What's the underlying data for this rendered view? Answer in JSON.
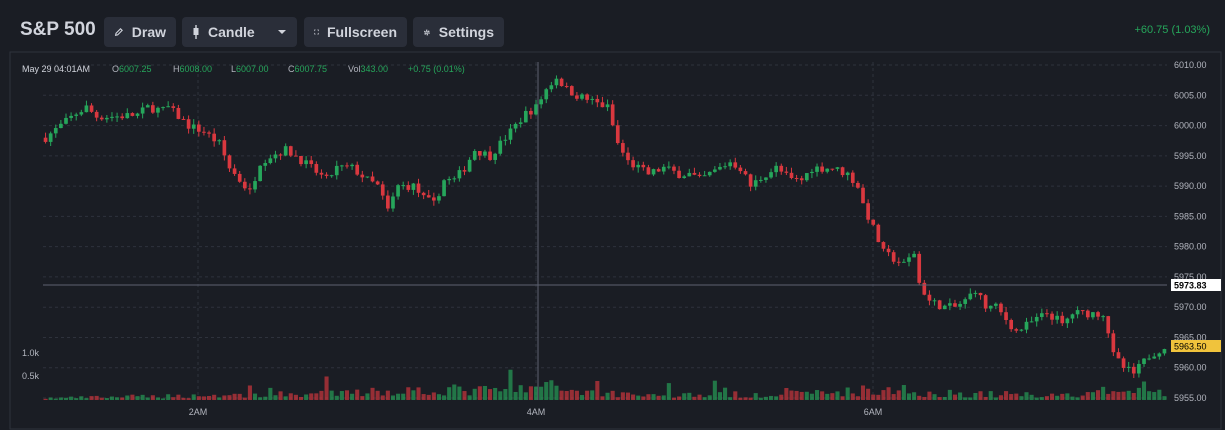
{
  "toolbar": {
    "title": "S&P 500",
    "draw_label": "Draw",
    "chart_type_label": "Candle",
    "fullscreen_label": "Fullscreen",
    "settings_label": "Settings",
    "change_text": "+60.75 (1.03%)"
  },
  "legend": {
    "time": "May 29 04:01AM",
    "o_label": "O",
    "o_value": "6007.25",
    "h_label": "H",
    "h_value": "6008.00",
    "l_label": "L",
    "l_value": "6007.00",
    "c_label": "C",
    "c_value": "6007.75",
    "vol_label": "Vol",
    "vol_value": "343.00",
    "change": "+0.75 (0.01%)"
  },
  "colors": {
    "up": "#26a65b",
    "down": "#d9383f",
    "background": "#1a1d24",
    "toolbar_button": "#2a2e39",
    "current_price_tag": "#f0c33c",
    "crosshair_tag": "#ffffff"
  },
  "chart_data": {
    "type": "candlestick",
    "x_tick_labels": [
      "2AM",
      "4AM",
      "6AM"
    ],
    "y_tick_labels": [
      "6010.00",
      "6005.00",
      "6000.00",
      "5995.00",
      "5990.00",
      "5985.00",
      "5980.00",
      "5975.00",
      "5970.00",
      "5965.00",
      "5960.00",
      "5955.00"
    ],
    "volume_tick_labels": [
      "1.0k",
      "0.5k"
    ],
    "ylim": [
      5955,
      6010.5
    ],
    "crosshair_price": "5973.83",
    "current_price": "5963.50",
    "grid": true,
    "price_path": [
      [
        0,
        5998
      ],
      [
        3,
        6000
      ],
      [
        6,
        6002
      ],
      [
        8,
        6003
      ],
      [
        10,
        6001.5
      ],
      [
        14,
        6001.5
      ],
      [
        18,
        6001.8
      ],
      [
        20,
        6003
      ],
      [
        23,
        6002.5
      ],
      [
        24,
        6003
      ],
      [
        26,
        6001.5
      ],
      [
        28,
        6000
      ],
      [
        31,
        5999
      ],
      [
        34,
        5997
      ],
      [
        36,
        5993
      ],
      [
        38,
        5991
      ],
      [
        40,
        5989
      ],
      [
        42,
        5994
      ],
      [
        44,
        5995
      ],
      [
        47,
        5996
      ],
      [
        49,
        5995
      ],
      [
        52,
        5993
      ],
      [
        55,
        5991
      ],
      [
        57,
        5993
      ],
      [
        60,
        5993
      ],
      [
        63,
        5991
      ],
      [
        65,
        5990
      ],
      [
        67,
        5986
      ],
      [
        69,
        5990
      ],
      [
        72,
        5990
      ],
      [
        74,
        5988
      ],
      [
        76,
        5987
      ],
      [
        78,
        5991
      ],
      [
        80,
        5991
      ],
      [
        82,
        5993
      ],
      [
        84,
        5996
      ],
      [
        87,
        5995
      ],
      [
        89,
        5997
      ],
      [
        92,
        6000
      ],
      [
        94,
        6002
      ],
      [
        96,
        6003
      ],
      [
        98,
        6006
      ],
      [
        100,
        6008
      ],
      [
        102,
        6006
      ],
      [
        104,
        6005
      ],
      [
        107,
        6004
      ],
      [
        110,
        6003
      ],
      [
        111,
        6000
      ],
      [
        112,
        5997
      ],
      [
        114,
        5994
      ],
      [
        116,
        5993
      ],
      [
        118,
        5992
      ],
      [
        121,
        5993
      ],
      [
        124,
        5992
      ],
      [
        126,
        5992
      ],
      [
        128,
        5991
      ],
      [
        130,
        5992
      ],
      [
        132,
        5993
      ],
      [
        134,
        5994
      ],
      [
        136,
        5993
      ],
      [
        138,
        5990
      ],
      [
        141,
        5992
      ],
      [
        143,
        5993
      ],
      [
        146,
        5991
      ],
      [
        148,
        5991
      ],
      [
        150,
        5993
      ],
      [
        152,
        5993
      ],
      [
        154,
        5993
      ],
      [
        157,
        5992
      ],
      [
        159,
        5990
      ],
      [
        160,
        5987
      ],
      [
        162,
        5983
      ],
      [
        164,
        5979
      ],
      [
        166,
        5978
      ],
      [
        168,
        5977
      ],
      [
        170,
        5979
      ],
      [
        171,
        5974
      ],
      [
        173,
        5971
      ],
      [
        176,
        5970
      ],
      [
        178,
        5970
      ],
      [
        180,
        5971
      ],
      [
        182,
        5973
      ],
      [
        184,
        5970
      ],
      [
        186,
        5970
      ],
      [
        188,
        5968
      ],
      [
        190,
        5966
      ],
      [
        192,
        5967
      ],
      [
        194,
        5968
      ],
      [
        196,
        5969
      ],
      [
        198,
        5968
      ],
      [
        199,
        5967
      ],
      [
        201,
        5969
      ],
      [
        203,
        5969
      ],
      [
        205,
        5969
      ],
      [
        207,
        5969
      ],
      [
        208,
        5966
      ],
      [
        209,
        5962
      ],
      [
        211,
        5960
      ],
      [
        213,
        5959
      ],
      [
        214,
        5960
      ],
      [
        216,
        5962
      ],
      [
        218,
        5963
      ],
      [
        219,
        5963.5
      ]
    ],
    "volume_path": [
      [
        0,
        40
      ],
      [
        20,
        80
      ],
      [
        40,
        110
      ],
      [
        60,
        150
      ],
      [
        75,
        230
      ],
      [
        90,
        200
      ],
      [
        98,
        300
      ],
      [
        108,
        160
      ],
      [
        120,
        110
      ],
      [
        135,
        120
      ],
      [
        150,
        140
      ],
      [
        160,
        210
      ],
      [
        170,
        160
      ],
      [
        185,
        130
      ],
      [
        195,
        120
      ],
      [
        205,
        110
      ],
      [
        212,
        200
      ],
      [
        219,
        180
      ]
    ],
    "volume_max": 1150
  }
}
